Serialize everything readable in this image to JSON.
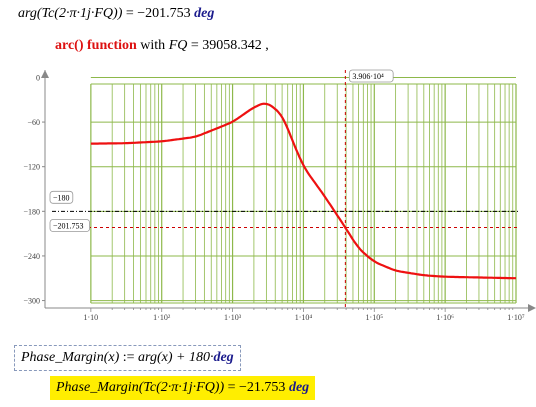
{
  "equation1": {
    "lhs": "arg(Tc(2·π·1j·FQ))",
    "op": "=",
    "value": "−201.753",
    "unit": "deg"
  },
  "subtitle": {
    "func": "arc() function",
    "mid": "with",
    "var": "FQ",
    "op": "=",
    "value": "39058.342",
    "tail": ","
  },
  "definition": {
    "lhs": "Phase_Margin(x)",
    "op": ":=",
    "rhs": "arg(x) + 180·",
    "unit": "deg"
  },
  "result": {
    "lhs": "Phase_Margin(Tc(2·π·1j·FQ))",
    "op": "=",
    "value": "−21.753",
    "unit": "deg"
  },
  "colors": {
    "curve": "#ee1111",
    "grid": "#8db84a",
    "markers": "#cc0000",
    "highlight": "#ffee00"
  },
  "chart_data": {
    "type": "line",
    "xscale": "log",
    "xlim": [
      1,
      10000000
    ],
    "ylim": [
      -310,
      10
    ],
    "x_tick_labels": [
      "1·10",
      "1·10²",
      "1·10³",
      "1·10⁴",
      "1·10⁵",
      "1·10⁶",
      "1·10⁷"
    ],
    "y_tick_values": [
      0,
      -60,
      -120,
      -180,
      -240,
      -300
    ],
    "y_tick_labels": [
      "0",
      "−60",
      "−120",
      "−180",
      "−240",
      "−300"
    ],
    "marker_vertical": {
      "x": 39058.342,
      "label": "3.906·10⁴"
    },
    "marker_horizontal_1": {
      "y": -180,
      "label": "−180"
    },
    "marker_horizontal_2": {
      "y": -201.753,
      "label": "−201.753"
    },
    "series": [
      {
        "x": [
          10,
          30,
          100,
          300,
          1000,
          2000,
          3000,
          5000,
          7000,
          10000,
          20000,
          39058,
          60000,
          100000,
          200000,
          500000,
          1000000,
          10000000
        ],
        "y": [
          -89,
          -88.5,
          -86,
          -80,
          -60,
          -40,
          -33,
          -50,
          -85,
          -120,
          -160,
          -201.8,
          -230,
          -248,
          -260,
          -266,
          -268,
          -270
        ]
      }
    ]
  }
}
